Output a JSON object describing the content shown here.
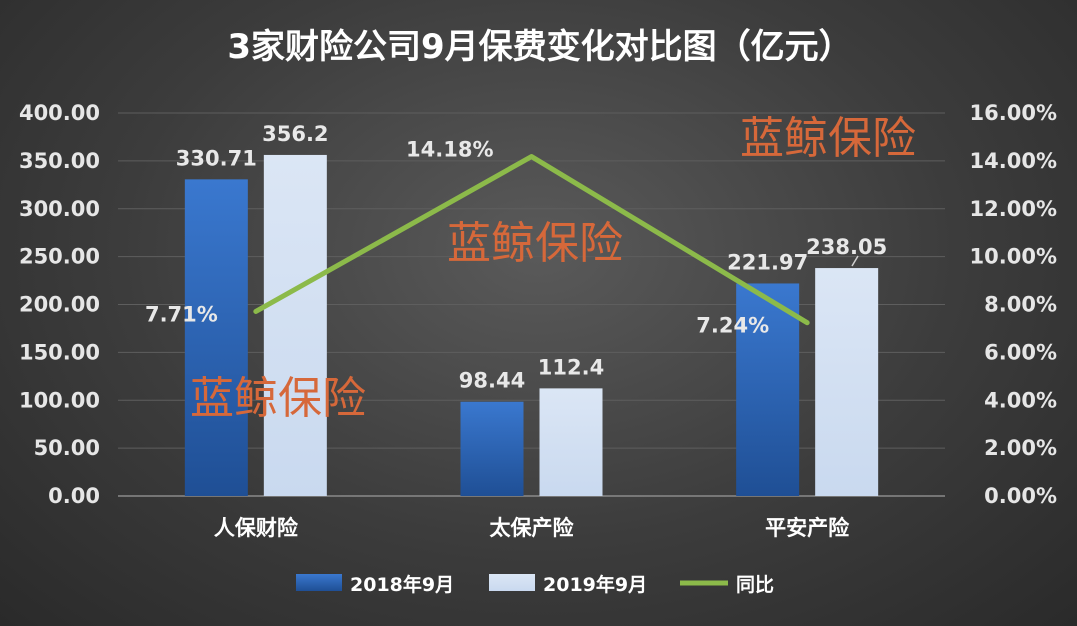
{
  "chart_data": {
    "type": "bar",
    "title": "3家财险公司9月保费变化对比图（亿元）",
    "categories": [
      "人保财险",
      "太保产险",
      "平安产险"
    ],
    "series": [
      {
        "name": "2018年9月",
        "type": "bar",
        "axis": "left",
        "values": [
          330.71,
          98.44,
          221.97
        ],
        "labels": [
          "330.71",
          "98.44",
          "221.97"
        ],
        "color": "#3a78cf"
      },
      {
        "name": "2019年9月",
        "type": "bar",
        "axis": "left",
        "values": [
          356.2,
          112.4,
          238.05
        ],
        "labels": [
          "356.2",
          "112.4",
          "238.05"
        ],
        "color": "#c9d9ef"
      },
      {
        "name": "同比",
        "type": "line",
        "axis": "right",
        "values": [
          7.71,
          14.18,
          7.24
        ],
        "labels": [
          "7.71%",
          "14.18%",
          "7.24%"
        ],
        "color": "#8cba4a"
      }
    ],
    "y_left": {
      "ylim": [
        0,
        400
      ],
      "ticks": [
        "0.00",
        "50.00",
        "100.00",
        "150.00",
        "200.00",
        "250.00",
        "300.00",
        "350.00",
        "400.00"
      ]
    },
    "y_right": {
      "ylim": [
        0,
        16
      ],
      "ticks": [
        "0.00%",
        "2.00%",
        "4.00%",
        "6.00%",
        "8.00%",
        "10.00%",
        "12.00%",
        "14.00%",
        "16.00%"
      ]
    },
    "grid": true,
    "legend_position": "bottom",
    "watermark": "蓝鲸保险"
  }
}
